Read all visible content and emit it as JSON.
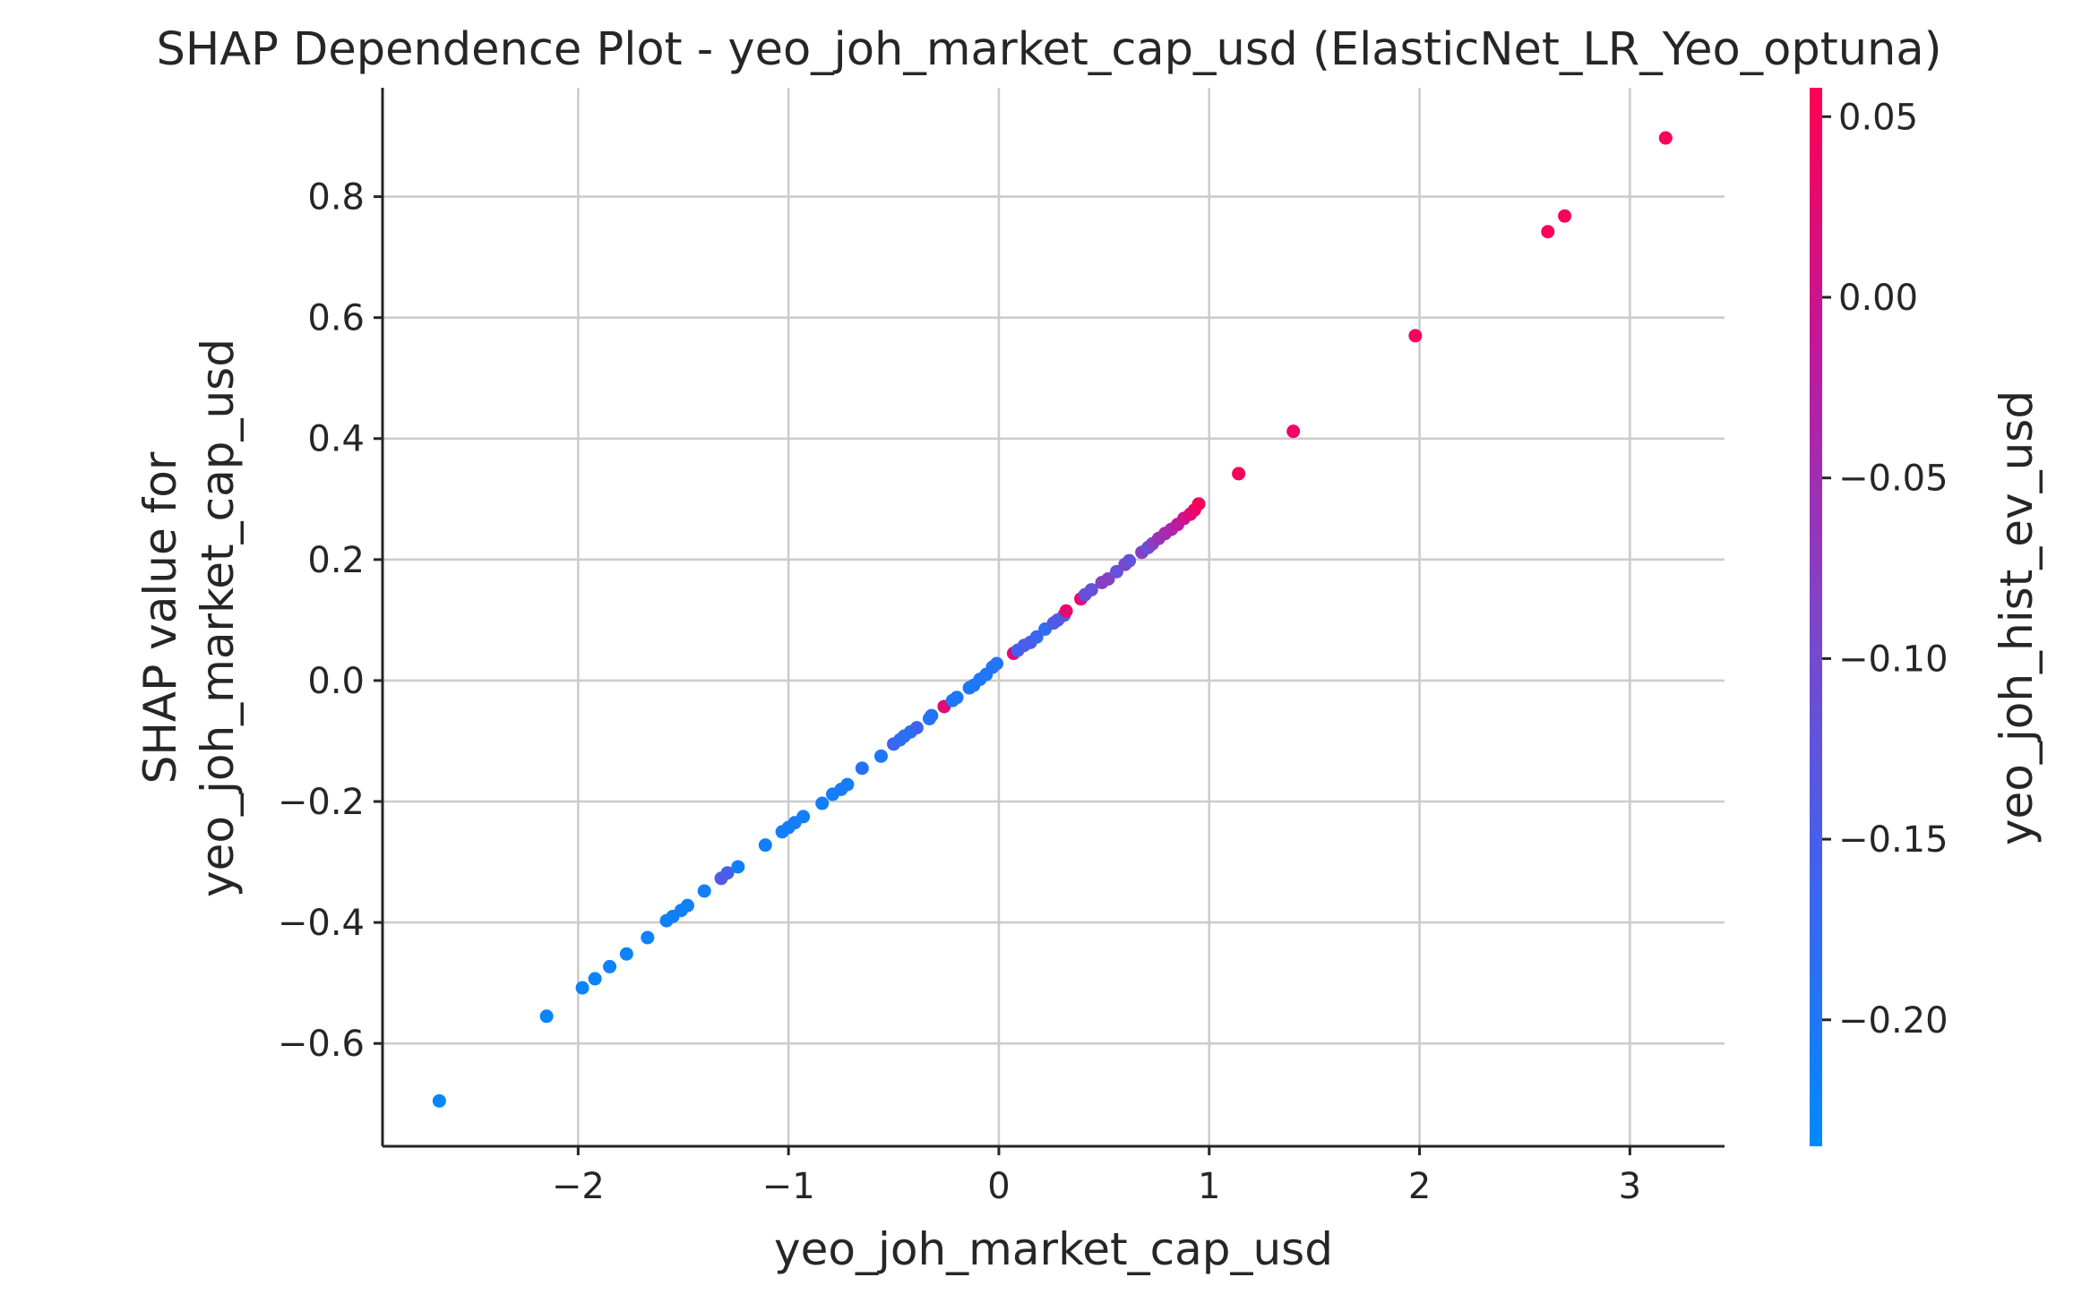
{
  "chart_data": {
    "type": "scatter",
    "title": "SHAP Dependence Plot - yeo_joh_market_cap_usd (ElasticNet_LR_Yeo_optuna)",
    "xlabel": "yeo_joh_market_cap_usd",
    "ylabel_lines": [
      "SHAP value for",
      "yeo_joh_market_cap_usd"
    ],
    "colorbar_label": "yeo_joh_hist_ev_usd",
    "xlim": [
      -2.93,
      3.45
    ],
    "ylim": [
      -0.77,
      0.98
    ],
    "x_ticks": [
      -2,
      -1,
      0,
      1,
      2,
      3
    ],
    "x_tick_labels": [
      "−2",
      "−1",
      "0",
      "1",
      "2",
      "3"
    ],
    "y_ticks": [
      -0.6,
      -0.4,
      -0.2,
      0.0,
      0.2,
      0.4,
      0.6,
      0.8
    ],
    "y_tick_labels": [
      "−0.6",
      "−0.4",
      "−0.2",
      "0.0",
      "0.2",
      "0.4",
      "0.6",
      "0.8"
    ],
    "colorbar_range": [
      -0.235,
      0.058
    ],
    "colorbar_ticks": [
      0.05,
      0.0,
      -0.05,
      -0.1,
      -0.15,
      -0.2
    ],
    "colorbar_tick_labels": [
      "0.05",
      "0.00",
      "−0.05",
      "−0.10",
      "−0.15",
      "−0.20"
    ],
    "colormap": [
      "#008afb",
      "#3f63f0",
      "#7e45c9",
      "#c0189c",
      "#ff0051"
    ],
    "grid": true,
    "points": [
      {
        "x": -2.66,
        "y": -0.695,
        "c": -0.23
      },
      {
        "x": -2.15,
        "y": -0.555,
        "c": -0.225
      },
      {
        "x": -1.98,
        "y": -0.508,
        "c": -0.222
      },
      {
        "x": -1.92,
        "y": -0.493,
        "c": -0.222
      },
      {
        "x": -1.85,
        "y": -0.473,
        "c": -0.22
      },
      {
        "x": -1.77,
        "y": -0.452,
        "c": -0.22
      },
      {
        "x": -1.67,
        "y": -0.425,
        "c": -0.22
      },
      {
        "x": -1.58,
        "y": -0.397,
        "c": -0.218
      },
      {
        "x": -1.55,
        "y": -0.39,
        "c": -0.218
      },
      {
        "x": -1.51,
        "y": -0.38,
        "c": -0.218
      },
      {
        "x": -1.48,
        "y": -0.372,
        "c": -0.218
      },
      {
        "x": -1.4,
        "y": -0.348,
        "c": -0.215
      },
      {
        "x": -1.32,
        "y": -0.327,
        "c": -0.14
      },
      {
        "x": -1.29,
        "y": -0.318,
        "c": -0.15
      },
      {
        "x": -1.24,
        "y": -0.308,
        "c": -0.215
      },
      {
        "x": -1.11,
        "y": -0.272,
        "c": -0.215
      },
      {
        "x": -1.03,
        "y": -0.25,
        "c": -0.213
      },
      {
        "x": -1.0,
        "y": -0.243,
        "c": -0.213
      },
      {
        "x": -0.97,
        "y": -0.235,
        "c": -0.213
      },
      {
        "x": -0.93,
        "y": -0.225,
        "c": -0.212
      },
      {
        "x": -0.84,
        "y": -0.203,
        "c": -0.212
      },
      {
        "x": -0.79,
        "y": -0.188,
        "c": -0.212
      },
      {
        "x": -0.75,
        "y": -0.18,
        "c": -0.21
      },
      {
        "x": -0.72,
        "y": -0.172,
        "c": -0.21
      },
      {
        "x": -0.65,
        "y": -0.145,
        "c": -0.19
      },
      {
        "x": -0.56,
        "y": -0.125,
        "c": -0.205
      },
      {
        "x": -0.5,
        "y": -0.105,
        "c": -0.165
      },
      {
        "x": -0.47,
        "y": -0.098,
        "c": -0.175
      },
      {
        "x": -0.45,
        "y": -0.092,
        "c": -0.185
      },
      {
        "x": -0.42,
        "y": -0.085,
        "c": -0.19
      },
      {
        "x": -0.39,
        "y": -0.078,
        "c": -0.16
      },
      {
        "x": -0.33,
        "y": -0.063,
        "c": -0.19
      },
      {
        "x": -0.32,
        "y": -0.058,
        "c": -0.195
      },
      {
        "x": -0.26,
        "y": -0.043,
        "c": 0.02
      },
      {
        "x": -0.22,
        "y": -0.033,
        "c": -0.2
      },
      {
        "x": -0.2,
        "y": -0.028,
        "c": -0.2
      },
      {
        "x": -0.14,
        "y": -0.012,
        "c": -0.2
      },
      {
        "x": -0.12,
        "y": -0.008,
        "c": -0.2
      },
      {
        "x": -0.09,
        "y": 0.002,
        "c": -0.2
      },
      {
        "x": -0.06,
        "y": 0.01,
        "c": -0.2
      },
      {
        "x": -0.03,
        "y": 0.022,
        "c": -0.195
      },
      {
        "x": -0.01,
        "y": 0.028,
        "c": -0.195
      },
      {
        "x": 0.07,
        "y": 0.045,
        "c": 0.02
      },
      {
        "x": 0.09,
        "y": 0.05,
        "c": -0.16
      },
      {
        "x": 0.12,
        "y": 0.058,
        "c": -0.15
      },
      {
        "x": 0.15,
        "y": 0.063,
        "c": -0.15
      },
      {
        "x": 0.18,
        "y": 0.072,
        "c": -0.17
      },
      {
        "x": 0.22,
        "y": 0.085,
        "c": -0.18
      },
      {
        "x": 0.26,
        "y": 0.095,
        "c": -0.14
      },
      {
        "x": 0.28,
        "y": 0.1,
        "c": -0.14
      },
      {
        "x": 0.31,
        "y": 0.108,
        "c": -0.14
      },
      {
        "x": 0.32,
        "y": 0.115,
        "c": 0.03
      },
      {
        "x": 0.39,
        "y": 0.135,
        "c": 0.025
      },
      {
        "x": 0.41,
        "y": 0.142,
        "c": -0.12
      },
      {
        "x": 0.44,
        "y": 0.15,
        "c": -0.12
      },
      {
        "x": 0.49,
        "y": 0.162,
        "c": -0.08
      },
      {
        "x": 0.52,
        "y": 0.168,
        "c": -0.08
      },
      {
        "x": 0.56,
        "y": 0.18,
        "c": -0.12
      },
      {
        "x": 0.6,
        "y": 0.192,
        "c": -0.09
      },
      {
        "x": 0.62,
        "y": 0.198,
        "c": -0.12
      },
      {
        "x": 0.68,
        "y": 0.212,
        "c": -0.08
      },
      {
        "x": 0.71,
        "y": 0.22,
        "c": -0.12
      },
      {
        "x": 0.73,
        "y": 0.226,
        "c": -0.08
      },
      {
        "x": 0.76,
        "y": 0.235,
        "c": -0.06
      },
      {
        "x": 0.79,
        "y": 0.243,
        "c": -0.05
      },
      {
        "x": 0.82,
        "y": 0.25,
        "c": -0.04
      },
      {
        "x": 0.85,
        "y": 0.258,
        "c": -0.02
      },
      {
        "x": 0.88,
        "y": 0.268,
        "c": 0.0
      },
      {
        "x": 0.91,
        "y": 0.275,
        "c": 0.02
      },
      {
        "x": 0.93,
        "y": 0.282,
        "c": 0.03
      },
      {
        "x": 0.95,
        "y": 0.292,
        "c": 0.05
      },
      {
        "x": 1.14,
        "y": 0.342,
        "c": 0.045
      },
      {
        "x": 1.4,
        "y": 0.412,
        "c": 0.04
      },
      {
        "x": 1.98,
        "y": 0.57,
        "c": 0.045
      },
      {
        "x": 2.61,
        "y": 0.742,
        "c": 0.05
      },
      {
        "x": 2.69,
        "y": 0.768,
        "c": 0.05
      },
      {
        "x": 3.17,
        "y": 0.897,
        "c": 0.05
      }
    ]
  }
}
